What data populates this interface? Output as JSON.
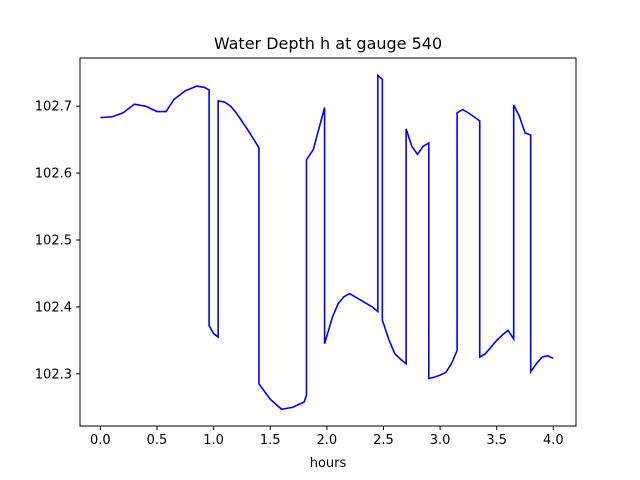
{
  "chart_data": {
    "type": "line",
    "title": "Water Depth h at gauge 540",
    "xlabel": "hours",
    "ylabel": "",
    "xlim": [
      -0.18,
      4.2
    ],
    "ylim": [
      102.222,
      102.772
    ],
    "xticks": [
      0.0,
      0.5,
      1.0,
      1.5,
      2.0,
      2.5,
      3.0,
      3.5,
      4.0
    ],
    "xtick_labels": [
      "0.0",
      "0.5",
      "1.0",
      "1.5",
      "2.0",
      "2.5",
      "3.0",
      "3.5",
      "4.0"
    ],
    "yticks": [
      102.3,
      102.4,
      102.5,
      102.6,
      102.7
    ],
    "ytick_labels": [
      "102.3",
      "102.4",
      "102.5",
      "102.6",
      "102.7"
    ],
    "grid": false,
    "legend": "none",
    "color": "#0000ff",
    "series": [
      {
        "x": [
          0.0,
          0.1,
          0.2,
          0.3,
          0.4,
          0.5,
          0.58,
          0.65,
          0.75,
          0.85,
          0.92,
          0.96,
          0.96,
          1.0,
          1.04,
          1.04,
          1.1,
          1.15,
          1.2,
          1.3,
          1.4,
          1.4,
          1.5,
          1.6,
          1.7,
          1.8,
          1.82,
          1.82,
          1.88,
          1.98,
          1.98,
          2.05,
          2.1,
          2.15,
          2.2,
          2.3,
          2.4,
          2.45,
          2.45,
          2.49,
          2.49,
          2.55,
          2.6,
          2.65,
          2.7,
          2.7,
          2.75,
          2.8,
          2.85,
          2.9,
          2.9,
          2.95,
          3.0,
          3.05,
          3.1,
          3.15,
          3.15,
          3.2,
          3.25,
          3.35,
          3.35,
          3.4,
          3.45,
          3.5,
          3.55,
          3.6,
          3.65,
          3.65,
          3.7,
          3.75,
          3.8,
          3.8,
          3.85,
          3.9,
          3.95,
          4.0
        ],
        "y": [
          102.683,
          102.684,
          102.69,
          102.703,
          102.7,
          102.692,
          102.692,
          102.71,
          102.723,
          102.73,
          102.728,
          102.724,
          102.372,
          102.36,
          102.355,
          102.708,
          102.706,
          102.7,
          102.69,
          102.665,
          102.638,
          102.285,
          102.262,
          102.247,
          102.25,
          102.258,
          102.268,
          102.62,
          102.635,
          102.698,
          102.345,
          102.385,
          102.405,
          102.415,
          102.42,
          102.41,
          102.4,
          102.393,
          102.746,
          102.74,
          102.38,
          102.35,
          102.33,
          102.322,
          102.315,
          102.666,
          102.64,
          102.628,
          102.64,
          102.645,
          102.293,
          102.295,
          102.298,
          102.302,
          102.315,
          102.335,
          102.69,
          102.695,
          102.69,
          102.678,
          102.325,
          102.33,
          102.34,
          102.35,
          102.358,
          102.365,
          102.352,
          102.702,
          102.685,
          102.66,
          102.657,
          102.303,
          102.315,
          102.325,
          102.327,
          102.323
        ]
      }
    ]
  }
}
